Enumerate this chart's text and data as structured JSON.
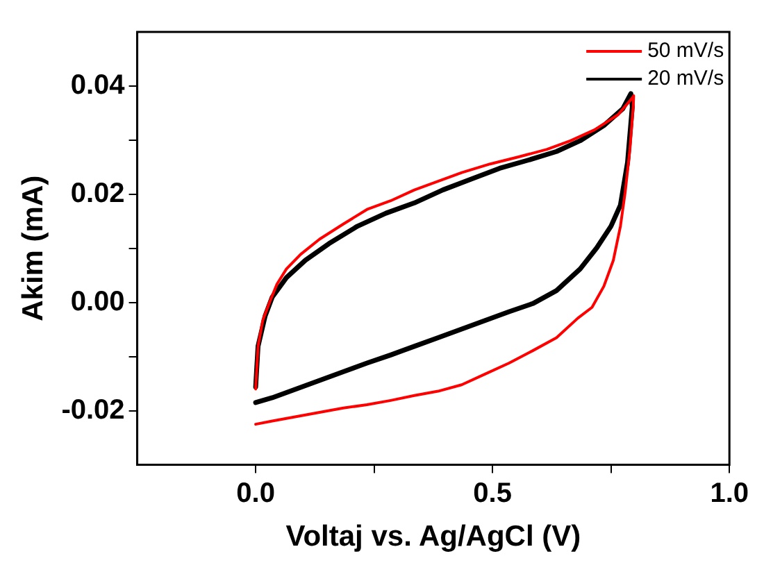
{
  "chart_data": {
    "type": "line",
    "xlabel": "Voltaj vs. Ag/AgCl (V)",
    "ylabel": "Akim (mA)",
    "xlim": [
      -0.25,
      1.0
    ],
    "xticks": [
      {
        "value": 0,
        "label": "0.0"
      },
      {
        "value": 0.25,
        "label": null
      },
      {
        "value": 0.5,
        "label": "0.5"
      },
      {
        "value": 0.75,
        "label": null
      },
      {
        "value": 1.0,
        "label": "1.0"
      }
    ],
    "ylim": [
      -0.03,
      0.05
    ],
    "yticks": [
      {
        "value": -0.02,
        "label": "-0.02"
      },
      {
        "value": -0.01,
        "label": null
      },
      {
        "value": 0,
        "label": "0.00"
      },
      {
        "value": 0.01,
        "label": null
      },
      {
        "value": 0.02,
        "label": "0.02"
      },
      {
        "value": 0.03,
        "label": null
      },
      {
        "value": 0.04,
        "label": "0.04"
      }
    ],
    "grid": false,
    "legend": "top right",
    "marker": "none",
    "line_style": "solid",
    "series": [
      {
        "name": "50 mV/s",
        "color": "#ff0000",
        "x": [
          0,
          0.005,
          0.015,
          0.03,
          0.045,
          0.065,
          0.095,
          0.135,
          0.185,
          0.235,
          0.285,
          0.335,
          0.385,
          0.435,
          0.495,
          0.555,
          0.615,
          0.665,
          0.715,
          0.765,
          0.795,
          0.798,
          0.797,
          0.79,
          0.78,
          0.77,
          0.755,
          0.735,
          0.71,
          0.68,
          0.635,
          0.585,
          0.535,
          0.485,
          0.435,
          0.385,
          0.335,
          0.285,
          0.235,
          0.185,
          0.135,
          0.085,
          0.035,
          0
        ],
        "values": [
          -0.016,
          -0.0081,
          -0.0033,
          0.0002,
          0.0034,
          0.0062,
          0.0089,
          0.0117,
          0.0145,
          0.0172,
          0.0188,
          0.0208,
          0.0224,
          0.024,
          0.0256,
          0.0269,
          0.0283,
          0.0299,
          0.0319,
          0.0347,
          0.0378,
          0.0382,
          0.0362,
          0.0283,
          0.0204,
          0.0141,
          0.0078,
          0.003,
          -0.0009,
          -0.0029,
          -0.0065,
          -0.0089,
          -0.0112,
          -0.0132,
          -0.0152,
          -0.0164,
          -0.0172,
          -0.0181,
          -0.0189,
          -0.0195,
          -0.0203,
          -0.0211,
          -0.0219,
          -0.0225
        ]
      },
      {
        "name": "20 mV/s",
        "color": "#000000",
        "x": [
          0,
          0.005,
          0.02,
          0.035,
          0.065,
          0.105,
          0.155,
          0.215,
          0.275,
          0.335,
          0.395,
          0.455,
          0.515,
          0.575,
          0.635,
          0.685,
          0.735,
          0.775,
          0.792,
          0.795,
          0.785,
          0.77,
          0.75,
          0.72,
          0.685,
          0.635,
          0.585,
          0.535,
          0.485,
          0.435,
          0.385,
          0.335,
          0.285,
          0.235,
          0.185,
          0.135,
          0.085,
          0.035,
          0
        ],
        "values": [
          -0.0156,
          -0.0081,
          -0.0025,
          0.001,
          0.0046,
          0.0078,
          0.0109,
          0.0141,
          0.0165,
          0.0184,
          0.0208,
          0.0228,
          0.0248,
          0.0263,
          0.0279,
          0.0299,
          0.0327,
          0.0358,
          0.0386,
          0.0362,
          0.0259,
          0.018,
          0.0141,
          0.0101,
          0.0062,
          0.0022,
          -0.0002,
          -0.0017,
          -0.0033,
          -0.0049,
          -0.0065,
          -0.0081,
          -0.0097,
          -0.0112,
          -0.0128,
          -0.0144,
          -0.016,
          -0.0176,
          -0.0185
        ]
      }
    ]
  }
}
